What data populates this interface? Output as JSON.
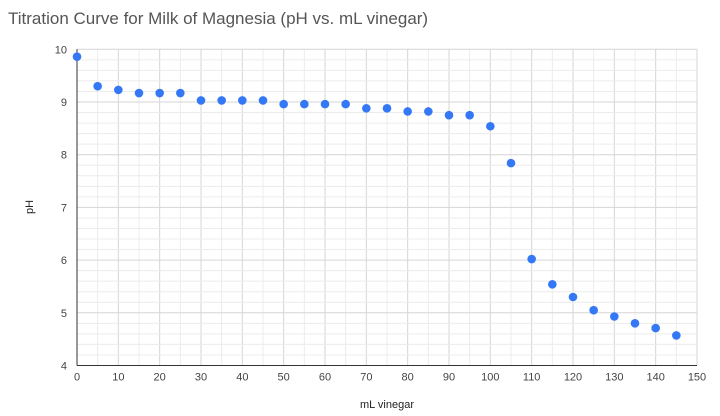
{
  "chart_data": {
    "type": "scatter",
    "title": "Titration Curve for Milk of Magnesia (pH vs. mL vinegar)",
    "xlabel": "mL vinegar",
    "ylabel": "pH",
    "xlim": [
      0,
      150
    ],
    "ylim": [
      4,
      10
    ],
    "xticks": [
      0,
      10,
      20,
      30,
      40,
      50,
      60,
      70,
      80,
      90,
      100,
      110,
      120,
      130,
      140,
      150
    ],
    "yticks": [
      4,
      5,
      6,
      7,
      8,
      9,
      10
    ],
    "grid": true,
    "legend": "none",
    "color": "#3478f6",
    "x": [
      0,
      5,
      10,
      15,
      20,
      25,
      30,
      35,
      40,
      45,
      50,
      55,
      60,
      65,
      70,
      75,
      80,
      85,
      90,
      95,
      100,
      105,
      110,
      115,
      120,
      125,
      130,
      135,
      140,
      145
    ],
    "y": [
      9.86,
      9.3,
      9.23,
      9.17,
      9.17,
      9.17,
      9.03,
      9.03,
      9.03,
      9.03,
      8.96,
      8.96,
      8.96,
      8.96,
      8.88,
      8.88,
      8.82,
      8.82,
      8.75,
      8.75,
      8.54,
      7.84,
      6.02,
      5.54,
      5.3,
      5.05,
      4.93,
      4.8,
      4.71,
      4.57
    ]
  }
}
